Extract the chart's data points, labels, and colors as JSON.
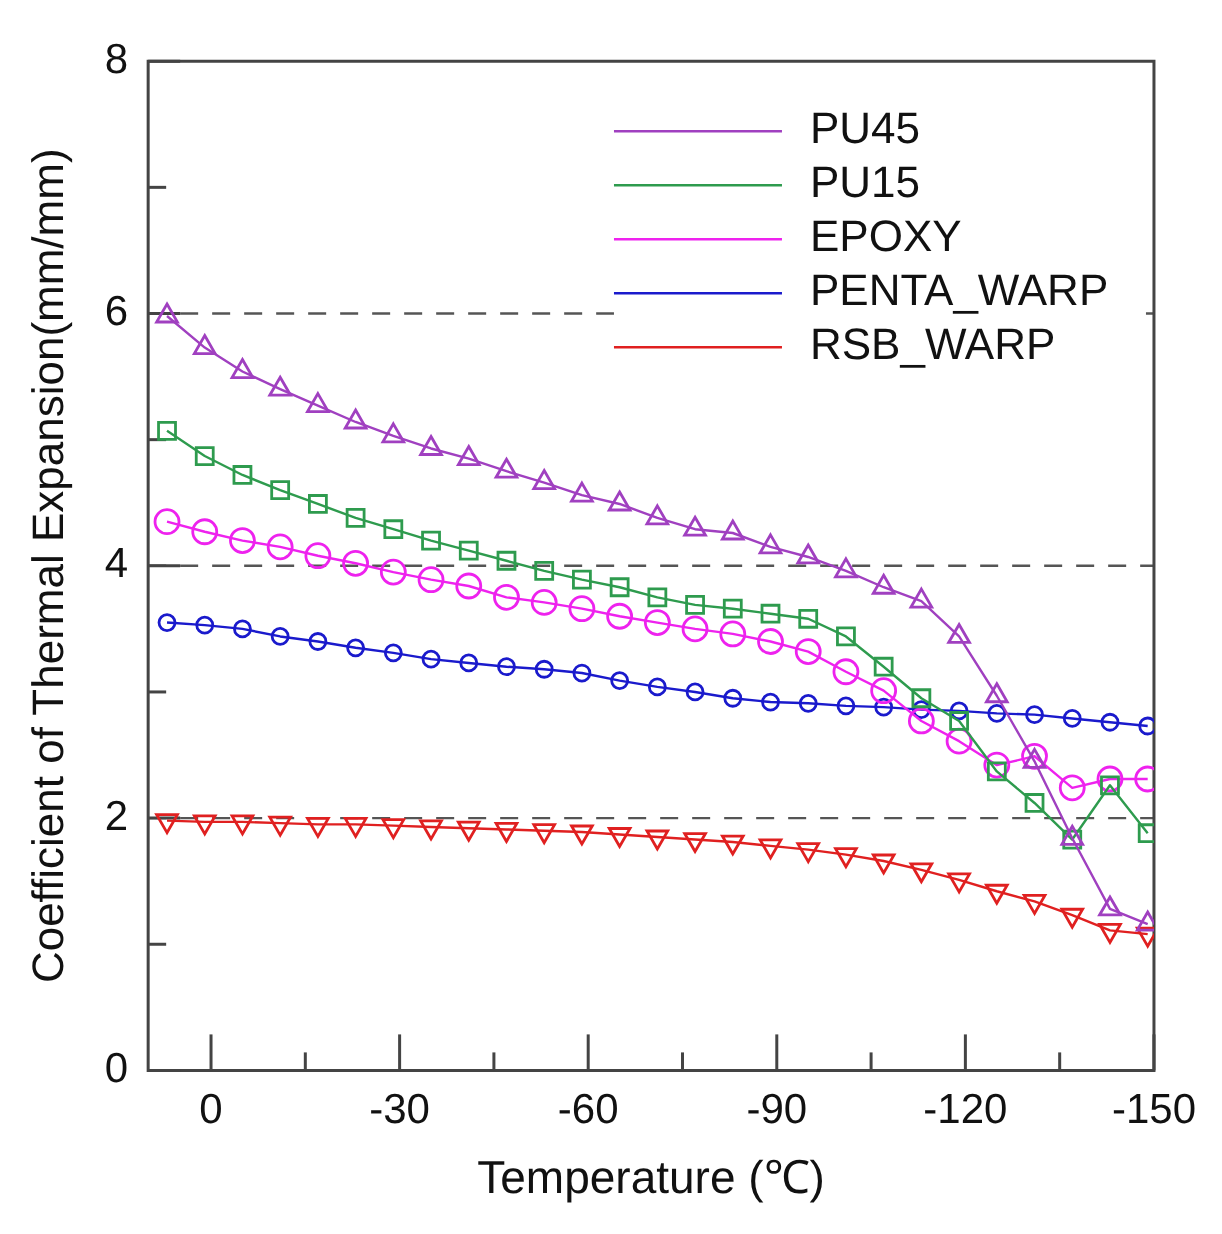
{
  "chart_data": {
    "type": "line",
    "xlabel": "Temperature (℃)",
    "ylabel": "Coefficient of Thermal Expansion(mm/mm)",
    "x": [
      7,
      1,
      -5,
      -11,
      -17,
      -23,
      -29,
      -35,
      -41,
      -47,
      -53,
      -59,
      -65,
      -71,
      -77,
      -83,
      -89,
      -95,
      -101,
      -107,
      -113,
      -119,
      -125,
      -131,
      -137,
      -143,
      -149
    ],
    "series": [
      {
        "name": "PU45",
        "color": "#a040c0",
        "marker": "triangle",
        "values": [
          5.98,
          5.73,
          5.54,
          5.4,
          5.27,
          5.14,
          5.03,
          4.93,
          4.85,
          4.75,
          4.66,
          4.56,
          4.49,
          4.38,
          4.29,
          4.26,
          4.15,
          4.07,
          3.96,
          3.83,
          3.72,
          3.44,
          2.97,
          2.45,
          1.84,
          1.28,
          1.16
        ]
      },
      {
        "name": "PU15",
        "color": "#2e9b4e",
        "marker": "square",
        "values": [
          5.07,
          4.87,
          4.72,
          4.6,
          4.49,
          4.38,
          4.29,
          4.2,
          4.12,
          4.04,
          3.96,
          3.89,
          3.83,
          3.75,
          3.69,
          3.66,
          3.62,
          3.58,
          3.44,
          3.2,
          2.95,
          2.77,
          2.37,
          2.12,
          1.83,
          2.26,
          1.88
        ]
      },
      {
        "name": "EPOXY",
        "color": "#ee22ee",
        "marker": "circle",
        "values": [
          4.35,
          4.27,
          4.2,
          4.15,
          4.08,
          4.02,
          3.95,
          3.89,
          3.84,
          3.75,
          3.71,
          3.66,
          3.6,
          3.55,
          3.5,
          3.46,
          3.4,
          3.32,
          3.16,
          3.01,
          2.77,
          2.61,
          2.42,
          2.49,
          2.24,
          2.31,
          2.31
        ]
      },
      {
        "name": "PENTA_WARP",
        "color": "#1a1acc",
        "marker": "circle",
        "values": [
          3.55,
          3.53,
          3.5,
          3.44,
          3.4,
          3.35,
          3.31,
          3.26,
          3.23,
          3.2,
          3.18,
          3.15,
          3.09,
          3.04,
          3.0,
          2.95,
          2.92,
          2.91,
          2.89,
          2.88,
          2.86,
          2.85,
          2.83,
          2.82,
          2.79,
          2.76,
          2.73
        ]
      },
      {
        "name": "RSB_WARP",
        "color": "#e02020",
        "marker": "triangle-down",
        "values": [
          1.98,
          1.97,
          1.97,
          1.96,
          1.95,
          1.95,
          1.94,
          1.93,
          1.92,
          1.91,
          1.9,
          1.89,
          1.87,
          1.85,
          1.83,
          1.81,
          1.78,
          1.75,
          1.71,
          1.66,
          1.59,
          1.51,
          1.42,
          1.34,
          1.23,
          1.11,
          1.08
        ]
      }
    ],
    "xlim": [
      10,
      -150
    ],
    "xticks": [
      0,
      {
        "value": -15,
        "label": null
      },
      -30,
      {
        "value": -45,
        "label": null
      },
      -60,
      {
        "value": -75,
        "label": null
      },
      -90,
      {
        "value": -105,
        "label": null
      },
      -120,
      {
        "value": -135,
        "label": null
      },
      -150
    ],
    "ylim": [
      0,
      8
    ],
    "yticks": [
      0,
      {
        "value": 1,
        "label": null
      },
      2,
      {
        "value": 3,
        "label": null
      },
      4,
      {
        "value": 5,
        "label": null
      },
      6,
      {
        "value": 7,
        "label": null
      },
      8
    ],
    "grid": "y",
    "line_style": "solid",
    "legend": "top right"
  }
}
